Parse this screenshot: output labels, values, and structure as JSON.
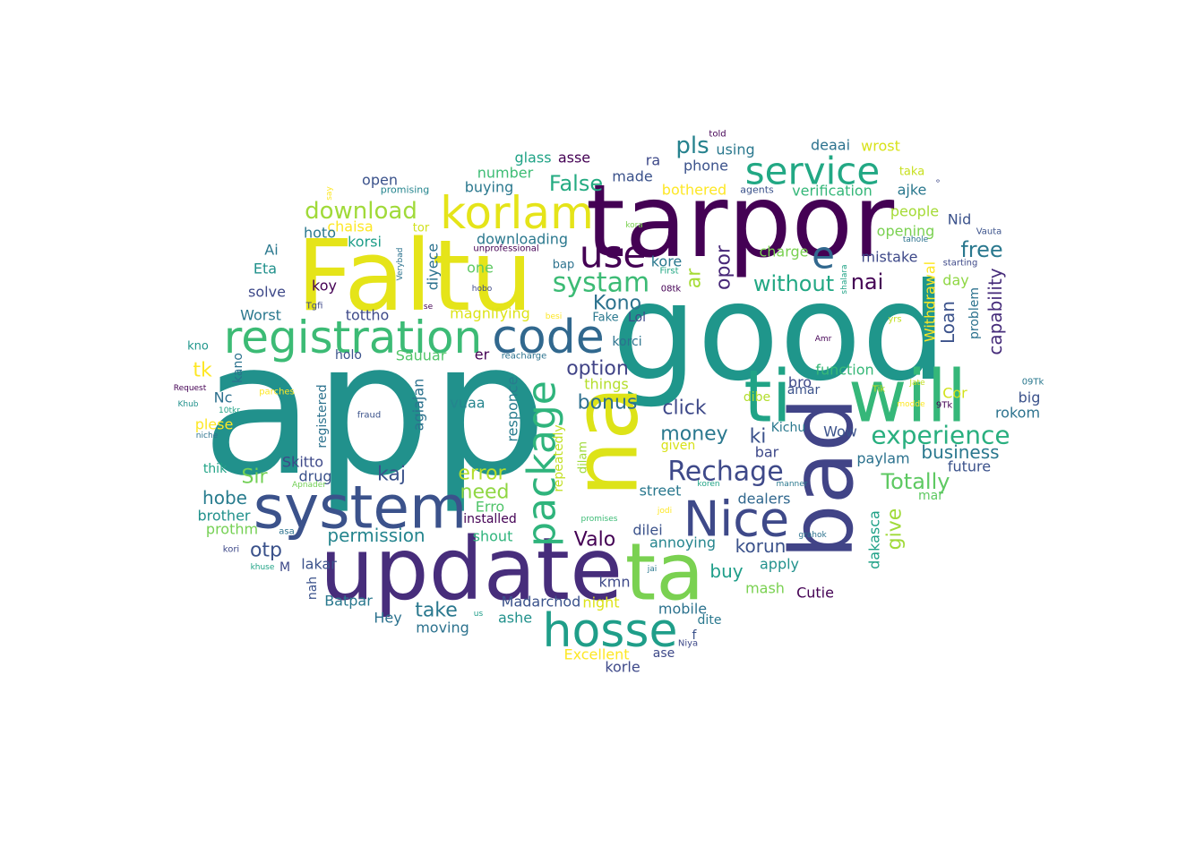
{
  "words": [
    {
      "text": "app",
      "color": "#21918c"
    },
    {
      "text": "good",
      "color": "#1f968b"
    },
    {
      "text": "tarpor",
      "color": "#440154"
    },
    {
      "text": "Faltu",
      "color": "#e5e419"
    },
    {
      "text": "update",
      "color": "#472d7b"
    },
    {
      "text": "bad",
      "color": "#414487"
    },
    {
      "text": "na",
      "color": "#dde318"
    },
    {
      "text": "ta",
      "color": "#7ad151"
    },
    {
      "text": "system",
      "color": "#3b528b"
    },
    {
      "text": "ti",
      "color": "#20a386"
    },
    {
      "text": "will",
      "color": "#35b779"
    },
    {
      "text": "registration",
      "color": "#3cbb75"
    },
    {
      "text": "code",
      "color": "#31688e"
    },
    {
      "text": "korlam",
      "color": "#e5e419"
    },
    {
      "text": "hosse",
      "color": "#1f9e89"
    },
    {
      "text": "Nice",
      "color": "#3e4989"
    },
    {
      "text": "package",
      "color": "#2fb47c"
    },
    {
      "text": "service",
      "color": "#22a884"
    },
    {
      "text": "use",
      "color": "#440154"
    },
    {
      "text": "e",
      "color": "#31688e"
    },
    {
      "text": "systam",
      "color": "#3cbb75"
    },
    {
      "text": "Rechage",
      "color": "#3e4989"
    },
    {
      "text": "experience",
      "color": "#29af7f"
    },
    {
      "text": "download",
      "color": "#a0da39"
    },
    {
      "text": "pls",
      "color": "#26828e"
    },
    {
      "text": "False",
      "color": "#25ab82"
    },
    {
      "text": "Totally",
      "color": "#5ec962"
    },
    {
      "text": "free",
      "color": "#2a788e"
    },
    {
      "text": "capability",
      "color": "#472d7b"
    },
    {
      "text": "Loan",
      "color": "#3b528b"
    },
    {
      "text": "nai",
      "color": "#440154"
    },
    {
      "text": "without",
      "color": "#22a884"
    },
    {
      "text": "opor",
      "color": "#482878"
    },
    {
      "text": "ar",
      "color": "#a5db36"
    },
    {
      "text": "Kono",
      "color": "#2c728e"
    },
    {
      "text": "option",
      "color": "#414487"
    },
    {
      "text": "click",
      "color": "#3e4989"
    },
    {
      "text": "bonus",
      "color": "#2e6f8e"
    },
    {
      "text": "money",
      "color": "#2a788e"
    },
    {
      "text": "ki",
      "color": "#3b528b"
    },
    {
      "text": "business",
      "color": "#2a788e"
    },
    {
      "text": "error",
      "color": "#b5de2b"
    },
    {
      "text": "kaj",
      "color": "#3b528b"
    },
    {
      "text": "need",
      "color": "#90d743"
    },
    {
      "text": "permission",
      "color": "#25858e"
    },
    {
      "text": "hobe",
      "color": "#287c8e"
    },
    {
      "text": "Sir",
      "color": "#73d056"
    },
    {
      "text": "tk",
      "color": "#fde725"
    },
    {
      "text": "otp",
      "color": "#3b528b"
    },
    {
      "text": "Valo",
      "color": "#440154"
    },
    {
      "text": "korun",
      "color": "#3b528b"
    },
    {
      "text": "buy",
      "color": "#1f9e89"
    },
    {
      "text": "take",
      "color": "#2a788e"
    },
    {
      "text": "give",
      "color": "#a0da39"
    },
    {
      "text": "dakasca",
      "color": "#1fa187"
    },
    {
      "text": "street",
      "color": "#2a788e"
    },
    {
      "text": "dilei",
      "color": "#3b528b"
    },
    {
      "text": "mobile",
      "color": "#2c728e"
    },
    {
      "text": "kmn",
      "color": "#3e4989"
    },
    {
      "text": "apply",
      "color": "#21918c"
    },
    {
      "text": "mash",
      "color": "#7ad151"
    },
    {
      "text": "Cutie",
      "color": "#440154"
    },
    {
      "text": "dealers",
      "color": "#31688e"
    },
    {
      "text": "annoying",
      "color": "#25858e"
    },
    {
      "text": "glass",
      "color": "#20a386"
    },
    {
      "text": "asse",
      "color": "#440154"
    },
    {
      "text": "number",
      "color": "#3dbc74"
    },
    {
      "text": "buying",
      "color": "#2a788e"
    },
    {
      "text": "made",
      "color": "#3b528b"
    },
    {
      "text": "ra",
      "color": "#3e4989"
    },
    {
      "text": "phone",
      "color": "#3b528b"
    },
    {
      "text": "using",
      "color": "#2a788e"
    },
    {
      "text": "bothered",
      "color": "#fde725"
    },
    {
      "text": "deaai",
      "color": "#2c728e"
    },
    {
      "text": "wrost",
      "color": "#d8e219"
    },
    {
      "text": "verification",
      "color": "#35b779"
    },
    {
      "text": "taka",
      "color": "#c8e020"
    },
    {
      "text": "ajke",
      "color": "#2a788e"
    },
    {
      "text": "people",
      "color": "#a5db36"
    },
    {
      "text": "Nid",
      "color": "#3b528b"
    },
    {
      "text": "opening",
      "color": "#7ad151"
    },
    {
      "text": "mistake",
      "color": "#3e4989"
    },
    {
      "text": "charge",
      "color": "#7ad151"
    },
    {
      "text": "day",
      "color": "#8fd744"
    },
    {
      "text": "problem",
      "color": "#2c728e"
    },
    {
      "text": "Withdrawal",
      "color": "#fde725"
    },
    {
      "text": "downloading",
      "color": "#2a788e"
    },
    {
      "text": "chaisa",
      "color": "#fde725"
    },
    {
      "text": "tor",
      "color": "#d0e11c"
    },
    {
      "text": "korsi",
      "color": "#1f9e89"
    },
    {
      "text": "hoto",
      "color": "#2a788e"
    },
    {
      "text": "Ai",
      "color": "#2a788e"
    },
    {
      "text": "Eta",
      "color": "#21918c"
    },
    {
      "text": "open",
      "color": "#3b528b"
    },
    {
      "text": "diyece",
      "color": "#2c728e"
    },
    {
      "text": "one",
      "color": "#5ec962"
    },
    {
      "text": "bap",
      "color": "#2c728e"
    },
    {
      "text": "kore",
      "color": "#2a788e"
    },
    {
      "text": "koy",
      "color": "#440154"
    },
    {
      "text": "solve",
      "color": "#3e4989"
    },
    {
      "text": "tottho",
      "color": "#3e4989"
    },
    {
      "text": "Worst",
      "color": "#2a788e"
    },
    {
      "text": "magnifying",
      "color": "#dde318"
    },
    {
      "text": "Fake",
      "color": "#2a788e"
    },
    {
      "text": "Lol",
      "color": "#3e4989"
    },
    {
      "text": "korci",
      "color": "#2c728e"
    },
    {
      "text": "things",
      "color": "#b5de2b"
    },
    {
      "text": "holo",
      "color": "#3b528b"
    },
    {
      "text": "Sauuar",
      "color": "#52c569"
    },
    {
      "text": "er",
      "color": "#440154"
    },
    {
      "text": "kano",
      "color": "#2c728e"
    },
    {
      "text": "kno",
      "color": "#1f968b"
    },
    {
      "text": "Nc",
      "color": "#2d708e"
    },
    {
      "text": "registered",
      "color": "#2c728e"
    },
    {
      "text": "agiajan",
      "color": "#2c728e"
    },
    {
      "text": "vuaa",
      "color": "#25858e"
    },
    {
      "text": "responce",
      "color": "#287c8e"
    },
    {
      "text": "repeatedly",
      "color": "#c2df23"
    },
    {
      "text": "dilam",
      "color": "#9fda3a"
    },
    {
      "text": "function",
      "color": "#37b878"
    },
    {
      "text": "bro",
      "color": "#3e4989"
    },
    {
      "text": "amar",
      "color": "#3b528b"
    },
    {
      "text": "dibe",
      "color": "#b2dd2d"
    },
    {
      "text": "Kichu",
      "color": "#2a788e"
    },
    {
      "text": "Wow",
      "color": "#3b528b"
    },
    {
      "text": "given",
      "color": "#d8e219"
    },
    {
      "text": "bar",
      "color": "#3e4989"
    },
    {
      "text": "paylam",
      "color": "#2c728e"
    },
    {
      "text": "Cor",
      "color": "#d2e21b"
    },
    {
      "text": "future",
      "color": "#3b528b"
    },
    {
      "text": "big",
      "color": "#3b528b"
    },
    {
      "text": "rokom",
      "color": "#2c728e"
    },
    {
      "text": "mar",
      "color": "#5ec962"
    },
    {
      "text": "plese",
      "color": "#fde725"
    },
    {
      "text": "thik",
      "color": "#20a386"
    },
    {
      "text": "Skitto",
      "color": "#3e4989"
    },
    {
      "text": "drug",
      "color": "#3b528b"
    },
    {
      "text": "brother",
      "color": "#21918c"
    },
    {
      "text": "prothm",
      "color": "#75d054"
    },
    {
      "text": "Erro",
      "color": "#50c46a"
    },
    {
      "text": "installed",
      "color": "#440154"
    },
    {
      "text": "shout",
      "color": "#2fb47c"
    },
    {
      "text": "lakar",
      "color": "#3b528b"
    },
    {
      "text": "nah",
      "color": "#3b528b"
    },
    {
      "text": "Batpar",
      "color": "#2a788e"
    },
    {
      "text": "Hey",
      "color": "#2c728e"
    },
    {
      "text": "moving",
      "color": "#2c728e"
    },
    {
      "text": "ashe",
      "color": "#21918c"
    },
    {
      "text": "Madarchod",
      "color": "#3b528b"
    },
    {
      "text": "night",
      "color": "#dde318"
    },
    {
      "text": "dite",
      "color": "#2a788e"
    },
    {
      "text": "f",
      "color": "#3b528b"
    },
    {
      "text": "Excellent",
      "color": "#fde725"
    },
    {
      "text": "ase",
      "color": "#3e4989"
    },
    {
      "text": "korle",
      "color": "#3e4989"
    },
    {
      "text": "M",
      "color": "#3e4989"
    },
    {
      "text": "told",
      "color": "#440154"
    },
    {
      "text": "promising",
      "color": "#25858e"
    },
    {
      "text": "say",
      "color": "#fde725"
    },
    {
      "text": "agents",
      "color": "#3b528b"
    },
    {
      "text": "°",
      "color": "#3e4989"
    },
    {
      "text": "kora",
      "color": "#7ad151"
    },
    {
      "text": "unprofessional",
      "color": "#440154"
    },
    {
      "text": "tahole",
      "color": "#2c728e"
    },
    {
      "text": "Vauta",
      "color": "#3b528b"
    },
    {
      "text": "starting",
      "color": "#3e4989"
    },
    {
      "text": "First",
      "color": "#22a884"
    },
    {
      "text": "shalara",
      "color": "#20a386"
    },
    {
      "text": "08tk",
      "color": "#440154"
    },
    {
      "text": "hobo",
      "color": "#3e4989"
    },
    {
      "text": "Tgfi",
      "color": "#3e4989"
    },
    {
      "text": "se",
      "color": "#440154"
    },
    {
      "text": "besi",
      "color": "#fde725"
    },
    {
      "text": "yrs",
      "color": "#c2df23"
    },
    {
      "text": "Amr",
      "color": "#440154"
    },
    {
      "text": "Verybad",
      "color": "#2c728e"
    },
    {
      "text": "reacharge",
      "color": "#2c728e"
    },
    {
      "text": "Request",
      "color": "#440154"
    },
    {
      "text": "parches",
      "color": "#fde725"
    },
    {
      "text": "Khub",
      "color": "#21918c"
    },
    {
      "text": "10tkr",
      "color": "#20a386"
    },
    {
      "text": "niche",
      "color": "#2c728e"
    },
    {
      "text": "fraud",
      "color": "#3b528b"
    },
    {
      "text": "Tik",
      "color": "#c2df23"
    },
    {
      "text": "Jate",
      "color": "#c2df23"
    },
    {
      "text": "modde",
      "color": "#fde725"
    },
    {
      "text": "09Tk",
      "color": "#2a788e"
    },
    {
      "text": "9Tk",
      "color": "#440154"
    },
    {
      "text": "Apnader",
      "color": "#73d056"
    },
    {
      "text": "koren",
      "color": "#20a386"
    },
    {
      "text": "manner",
      "color": "#2a788e"
    },
    {
      "text": "jodi",
      "color": "#fde725"
    },
    {
      "text": "promises",
      "color": "#3cbb75"
    },
    {
      "text": "grahok",
      "color": "#2c728e"
    },
    {
      "text": "asa",
      "color": "#2c728e"
    },
    {
      "text": "kori",
      "color": "#3e4989"
    },
    {
      "text": "khuse",
      "color": "#20a386"
    },
    {
      "text": "jai",
      "color": "#2a788e"
    },
    {
      "text": "us",
      "color": "#1f9e89"
    },
    {
      "text": "Niya",
      "color": "#3e4989"
    }
  ]
}
